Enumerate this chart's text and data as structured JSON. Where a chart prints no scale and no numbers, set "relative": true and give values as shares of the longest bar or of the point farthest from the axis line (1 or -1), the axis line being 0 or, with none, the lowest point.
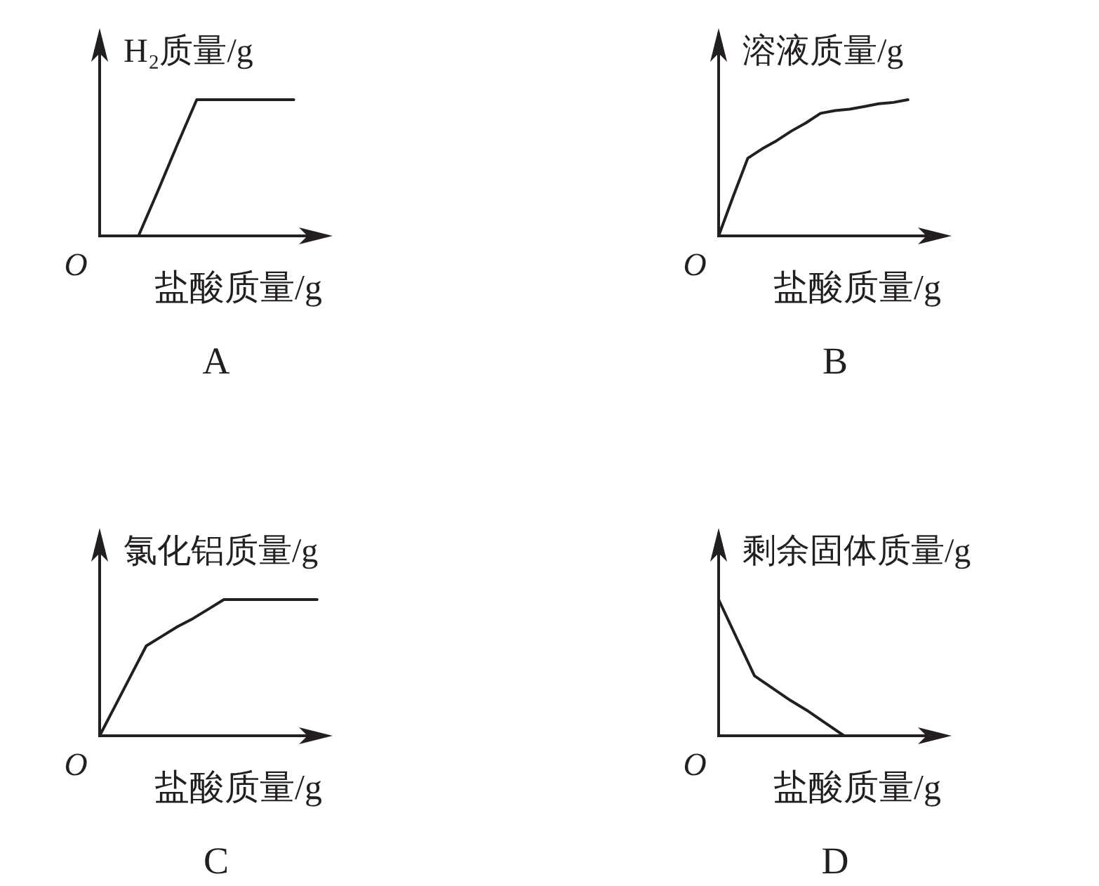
{
  "chart_data": [
    {
      "type": "line",
      "title": "A",
      "ylabel": "H₂质量/g",
      "xlabel": "盐酸质量/g",
      "annotations": [
        "O"
      ],
      "relative": true,
      "categories": [
        null,
        null,
        null,
        null,
        null,
        null,
        null,
        null,
        null,
        null,
        null,
        null
      ],
      "series": [
        {
          "color": "#231f20",
          "values": [
            null,
            null,
            0,
            0.33,
            0.67,
            1,
            1,
            1,
            1,
            1,
            1,
            null
          ]
        }
      ]
    },
    {
      "type": "line",
      "title": "B",
      "ylabel": "溶液质量/g",
      "xlabel": "盐酸质量/g",
      "annotations": [
        "O"
      ],
      "relative": true,
      "categories": [
        null,
        null,
        null,
        null,
        null,
        null,
        null,
        null,
        null,
        null,
        null,
        null,
        null,
        null,
        null,
        null
      ],
      "series": [
        {
          "color": "#231f20",
          "values": [
            0,
            0.29,
            0.57,
            0.64,
            0.7,
            0.77,
            0.83,
            0.9,
            0.92,
            0.93,
            0.95,
            0.97,
            0.98,
            1,
            null,
            null
          ]
        }
      ]
    },
    {
      "type": "line",
      "title": "C",
      "ylabel": "氯化铝质量/g",
      "xlabel": "盐酸质量/g",
      "annotations": [
        "O"
      ],
      "relative": true,
      "categories": [
        null,
        null,
        null,
        null,
        null,
        null,
        null,
        null,
        null,
        null,
        null,
        null,
        null,
        null,
        null
      ],
      "series": [
        {
          "color": "#231f20",
          "values": [
            0,
            0.22,
            0.44,
            0.66,
            0.73,
            0.8,
            0.86,
            0.93,
            1,
            1,
            1,
            1,
            1,
            1,
            1
          ]
        }
      ]
    },
    {
      "type": "line",
      "title": "D",
      "ylabel": "剩余固体质量/g",
      "xlabel": "盐酸质量/g",
      "annotations": [
        "O"
      ],
      "relative": true,
      "categories": [
        null,
        null,
        null,
        null,
        null,
        null,
        null,
        null,
        null,
        null,
        null,
        null,
        null
      ],
      "series": [
        {
          "color": "#231f20",
          "values": [
            1,
            0.72,
            0.44,
            0.35,
            0.26,
            0.18,
            0.09,
            0,
            null,
            null,
            null,
            null,
            null
          ]
        }
      ]
    }
  ]
}
